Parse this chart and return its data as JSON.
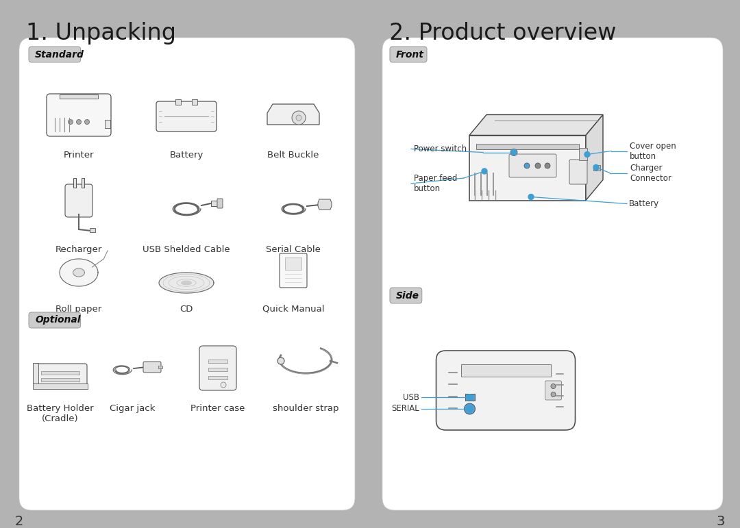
{
  "bg_color": "#b3b3b3",
  "panel_bg": "#ffffff",
  "title1": "1. Unpacking",
  "title2": "2. Product overview",
  "title_fontsize": 24,
  "title_color": "#1a1a1a",
  "section_label_standard": "Standard",
  "section_label_optional": "Optional",
  "section_label_front": "Front",
  "section_label_side": "Side",
  "section_label_bg": "#cccccc",
  "section_label_fontsize": 10,
  "label_color": "#333333",
  "label_fontsize": 9.5,
  "page_num_left": "2",
  "page_num_right": "3",
  "page_num_fontsize": 14,
  "line_color": "#3d9fd4",
  "annotation_fontsize": 8.5
}
